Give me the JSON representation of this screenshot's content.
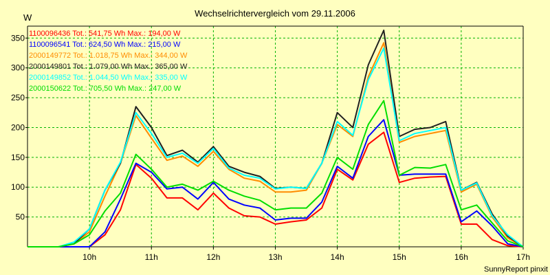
{
  "chart_data": {
    "type": "line",
    "title": "Wechselrichtervergleich vom 29.11.2006",
    "ylabel": "W",
    "xlabel": "",
    "ylim": [
      0,
      370
    ],
    "y_ticks": [
      50,
      100,
      150,
      200,
      250,
      300,
      350
    ],
    "x_ticks": [
      {
        "value": 10,
        "label": "10h"
      },
      {
        "value": 11,
        "label": "11h"
      },
      {
        "value": 12,
        "label": "12h"
      },
      {
        "value": 13,
        "label": "13h"
      },
      {
        "value": 14,
        "label": "14h"
      },
      {
        "value": 15,
        "label": "15h"
      },
      {
        "value": 16,
        "label": "16h"
      },
      {
        "value": 17,
        "label": "17h"
      }
    ],
    "grid": true,
    "legend_position": "top-left",
    "x": [
      9.0,
      9.25,
      9.5,
      9.75,
      10.0,
      10.25,
      10.5,
      10.75,
      11.0,
      11.25,
      11.5,
      11.75,
      12.0,
      12.25,
      12.5,
      12.75,
      13.0,
      13.25,
      13.5,
      13.75,
      14.0,
      14.25,
      14.5,
      14.75,
      15.0,
      15.25,
      15.5,
      15.75,
      16.0,
      16.25,
      16.5,
      16.75,
      17.0
    ],
    "series": [
      {
        "name": "1100096436",
        "legend": "1100096436 Tot.: 541,75 Wh Max.: 194,00 W",
        "color": "#ff0000",
        "values": [
          0,
          0,
          0,
          0,
          0,
          20,
          62,
          138,
          115,
          82,
          82,
          62,
          90,
          65,
          52,
          50,
          38,
          42,
          45,
          65,
          130,
          112,
          172,
          192,
          108,
          115,
          117,
          118,
          38,
          38,
          12,
          2,
          0
        ]
      },
      {
        "name": "1100096541",
        "legend": "1100096541 Tot.: 624,50 Wh Max.: 215,00 W",
        "color": "#0000ff",
        "values": [
          0,
          0,
          0,
          0,
          0,
          25,
          80,
          140,
          125,
          97,
          100,
          80,
          108,
          80,
          70,
          65,
          45,
          48,
          48,
          75,
          135,
          115,
          185,
          213,
          120,
          122,
          122,
          122,
          42,
          60,
          35,
          5,
          0
        ]
      },
      {
        "name": "2000149772",
        "legend": "2000149772 Tot.: 1.018,75 Wh Max.: 344,00 W",
        "color": "#ff8c00",
        "values": [
          0,
          0,
          0,
          5,
          25,
          85,
          140,
          220,
          182,
          145,
          152,
          135,
          160,
          130,
          115,
          110,
          92,
          92,
          95,
          140,
          205,
          185,
          285,
          342,
          175,
          185,
          190,
          195,
          92,
          105,
          50,
          15,
          0
        ]
      },
      {
        "name": "2000149801",
        "legend": "2000149801 Tot.: 1.079,00 Wh Max.: 365,00 W",
        "color": "#202020",
        "values": [
          0,
          0,
          0,
          5,
          30,
          95,
          140,
          235,
          200,
          153,
          162,
          142,
          168,
          135,
          125,
          118,
          98,
          100,
          98,
          140,
          225,
          200,
          305,
          363,
          185,
          197,
          200,
          210,
          95,
          108,
          55,
          18,
          0
        ]
      },
      {
        "name": "2000149852",
        "legend": "2000149852 Tot.: 1.044,50 Wh Max.: 335,00 W",
        "color": "#00ffff",
        "values": [
          0,
          0,
          0,
          8,
          30,
          95,
          142,
          225,
          190,
          150,
          157,
          140,
          165,
          132,
          120,
          115,
          97,
          100,
          98,
          140,
          210,
          187,
          280,
          333,
          178,
          190,
          195,
          200,
          95,
          107,
          52,
          20,
          0
        ]
      },
      {
        "name": "2000150622",
        "legend": "2000150622 Tot.: 705,50 Wh Max.: 247,00 W",
        "color": "#00dd00",
        "values": [
          0,
          0,
          0,
          5,
          20,
          60,
          90,
          155,
          130,
          100,
          105,
          95,
          110,
          95,
          85,
          78,
          62,
          65,
          65,
          90,
          150,
          130,
          205,
          245,
          120,
          133,
          132,
          138,
          62,
          70,
          40,
          10,
          0
        ]
      }
    ]
  },
  "footer": {
    "credit": "SunnyReport pinxit"
  }
}
